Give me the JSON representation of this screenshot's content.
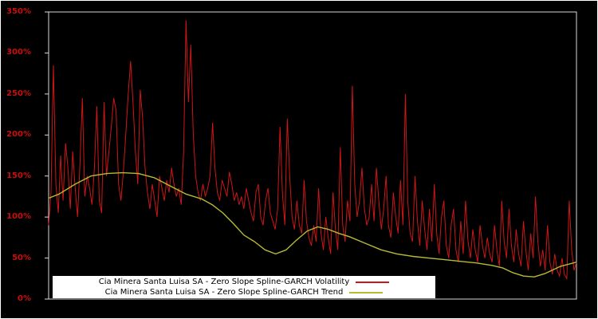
{
  "window": {
    "background": "#000000",
    "outer_border": "#ffffff"
  },
  "chart_data": {
    "type": "line",
    "title": "",
    "xlabel": "",
    "ylabel": "",
    "ylim": [
      0,
      350
    ],
    "y_ticks": [
      "0%",
      "50%",
      "100%",
      "150%",
      "200%",
      "250%",
      "300%",
      "350%"
    ],
    "y_tick_values": [
      0,
      50,
      100,
      150,
      200,
      250,
      300,
      350
    ],
    "x_tick_labels": [],
    "grid": false,
    "axis_color": "#d8d8d8",
    "tick_label_color": "#cc0e0e",
    "plot_background": "#000000",
    "legend_position": "bottom-center-inside",
    "series": [
      {
        "name": "Cia Minera Santa Luisa SA - Zero Slope Spline-GARCH Volatility",
        "color": "#cf1616",
        "unit": "percent",
        "values": [
          90,
          130,
          285,
          140,
          105,
          175,
          120,
          190,
          160,
          110,
          180,
          135,
          100,
          165,
          245,
          125,
          150,
          135,
          115,
          160,
          235,
          120,
          105,
          240,
          150,
          180,
          210,
          245,
          230,
          140,
          120,
          155,
          200,
          250,
          290,
          240,
          180,
          140,
          255,
          220,
          160,
          130,
          110,
          140,
          120,
          100,
          150,
          135,
          120,
          145,
          130,
          160,
          140,
          125,
          135,
          115,
          180,
          340,
          240,
          310,
          200,
          150,
          130,
          120,
          140,
          125,
          135,
          150,
          215,
          160,
          130,
          120,
          145,
          135,
          125,
          155,
          140,
          120,
          130,
          115,
          125,
          110,
          135,
          120,
          105,
          95,
          130,
          140,
          100,
          90,
          120,
          135,
          105,
          95,
          85,
          110,
          210,
          130,
          90,
          220,
          150,
          100,
          85,
          120,
          90,
          80,
          145,
          95,
          75,
          65,
          90,
          70,
          135,
          80,
          60,
          100,
          75,
          55,
          130,
          85,
          60,
          185,
          90,
          70,
          120,
          95,
          260,
          140,
          100,
          120,
          160,
          110,
          90,
          100,
          140,
          95,
          160,
          120,
          85,
          110,
          150,
          90,
          75,
          130,
          100,
          80,
          145,
          90,
          250,
          120,
          80,
          70,
          150,
          95,
          65,
          120,
          85,
          60,
          110,
          70,
          140,
          80,
          55,
          100,
          120,
          65,
          50,
          90,
          110,
          60,
          45,
          95,
          55,
          120,
          70,
          50,
          85,
          60,
          45,
          90,
          65,
          50,
          75,
          55,
          45,
          90,
          60,
          40,
          120,
          70,
          50,
          110,
          65,
          45,
          85,
          55,
          40,
          95,
          60,
          35,
          80,
          50,
          125,
          70,
          40,
          60,
          35,
          90,
          45,
          30,
          55,
          35,
          28,
          50,
          30,
          25,
          120,
          60,
          35,
          45
        ]
      },
      {
        "name": "Cia Minera Santa Luisa SA - Zero Slope Spline-GARCH Trend",
        "color": "#b7ba33",
        "unit": "percent",
        "x": [
          0,
          0.02,
          0.05,
          0.08,
          0.11,
          0.14,
          0.17,
          0.2,
          0.23,
          0.26,
          0.29,
          0.31,
          0.33,
          0.35,
          0.37,
          0.39,
          0.41,
          0.43,
          0.45,
          0.47,
          0.49,
          0.51,
          0.53,
          0.55,
          0.57,
          0.6,
          0.63,
          0.66,
          0.69,
          0.72,
          0.75,
          0.78,
          0.81,
          0.84,
          0.86,
          0.88,
          0.9,
          0.92,
          0.94,
          0.97,
          1.0
        ],
        "values": [
          123,
          128,
          140,
          150,
          153,
          154,
          153,
          148,
          138,
          128,
          122,
          115,
          105,
          92,
          78,
          70,
          60,
          55,
          60,
          72,
          83,
          88,
          85,
          80,
          76,
          68,
          60,
          55,
          52,
          50,
          48,
          46,
          44,
          41,
          38,
          32,
          28,
          27,
          31,
          40,
          45
        ]
      }
    ]
  },
  "legend": {
    "background": "#ffffff",
    "items": [
      {
        "label": "Cia Minera Santa Luisa SA - Zero Slope Spline-GARCH Volatility",
        "color": "#cf1616"
      },
      {
        "label": "Cia Minera Santa Luisa SA - Zero Slope Spline-GARCH Trend",
        "color": "#b7ba33"
      }
    ]
  }
}
